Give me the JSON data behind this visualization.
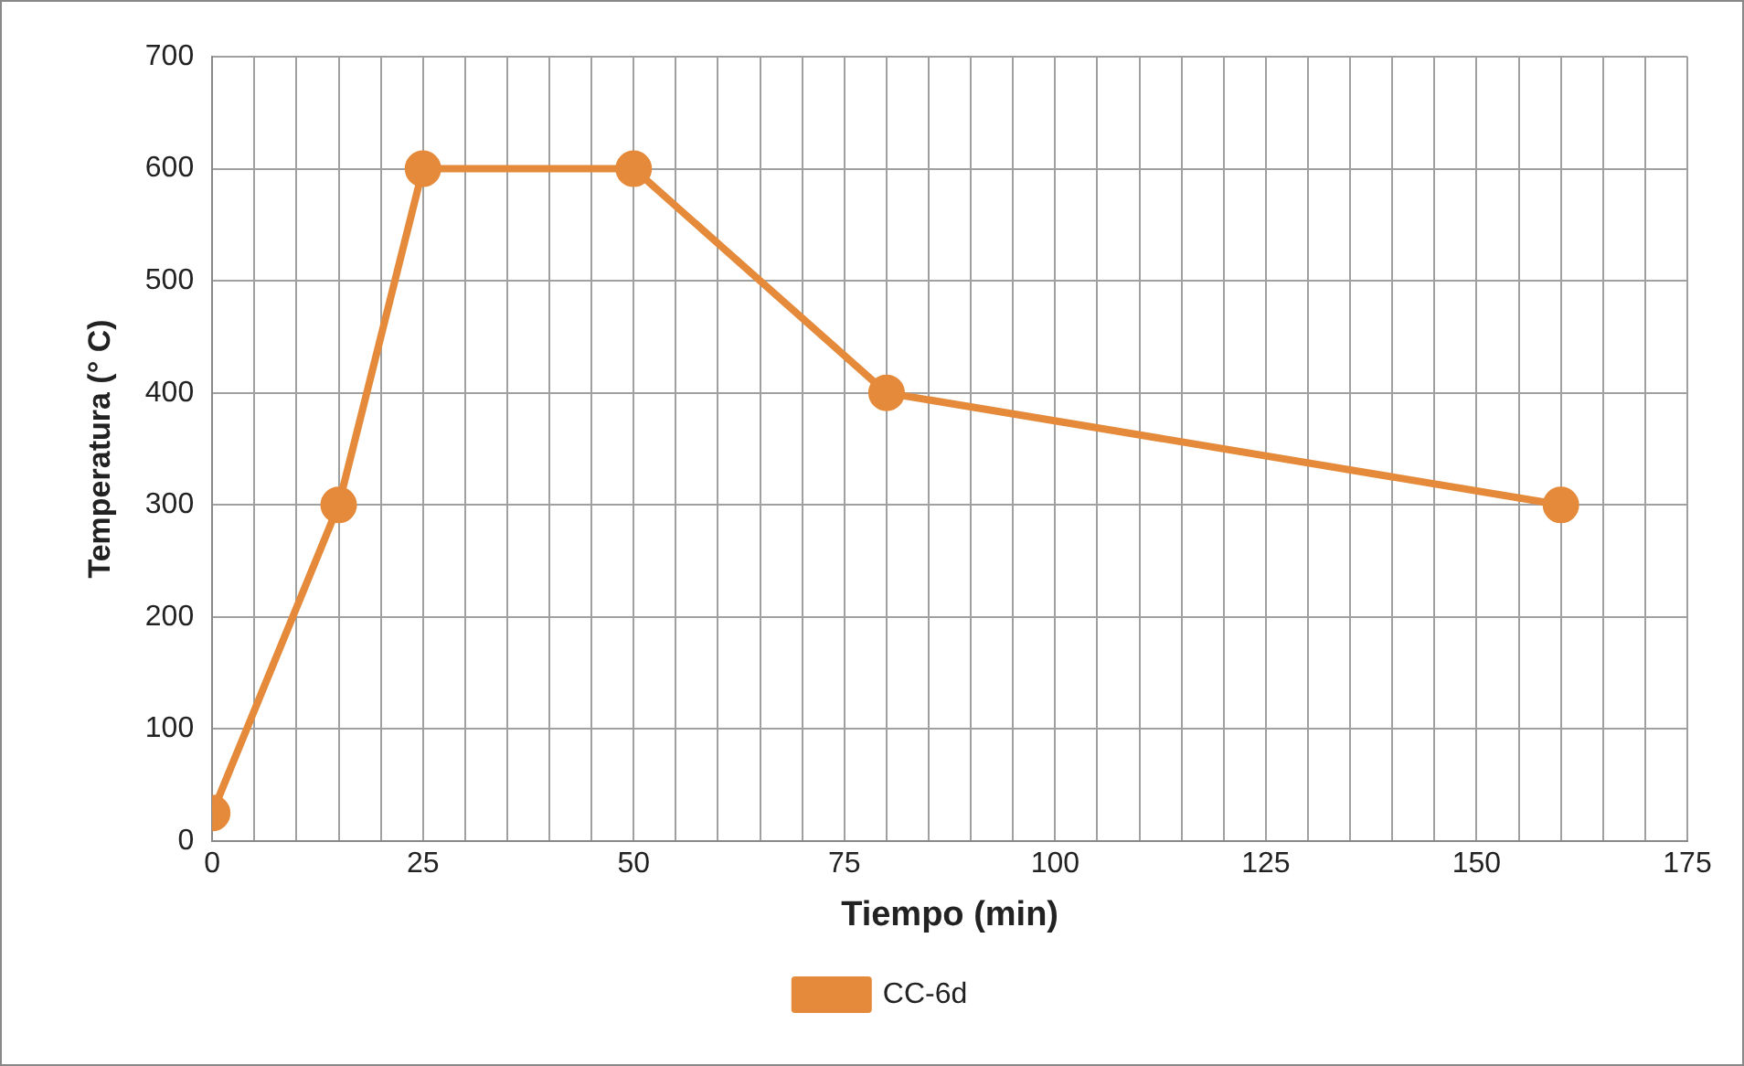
{
  "chart_data": {
    "type": "line",
    "xlabel": "Tiempo (min)",
    "ylabel": "Temperatura (° C)",
    "x": [
      0,
      15,
      25,
      50,
      80,
      160
    ],
    "series": [
      {
        "name": "CC-6d",
        "color": "#e48a3a",
        "values": [
          25,
          300,
          600,
          600,
          400,
          300
        ]
      }
    ],
    "xlim": [
      0,
      175
    ],
    "xticks": [
      0,
      {
        "value": 5,
        "label": null
      },
      {
        "value": 10,
        "label": null
      },
      {
        "value": 15,
        "label": null
      },
      {
        "value": 20,
        "label": null
      },
      25,
      {
        "value": 30,
        "label": null
      },
      {
        "value": 35,
        "label": null
      },
      {
        "value": 40,
        "label": null
      },
      {
        "value": 45,
        "label": null
      },
      50,
      {
        "value": 55,
        "label": null
      },
      {
        "value": 60,
        "label": null
      },
      {
        "value": 65,
        "label": null
      },
      {
        "value": 70,
        "label": null
      },
      75,
      {
        "value": 80,
        "label": null
      },
      {
        "value": 85,
        "label": null
      },
      {
        "value": 90,
        "label": null
      },
      {
        "value": 95,
        "label": null
      },
      100,
      {
        "value": 105,
        "label": null
      },
      {
        "value": 110,
        "label": null
      },
      {
        "value": 115,
        "label": null
      },
      {
        "value": 120,
        "label": null
      },
      125,
      {
        "value": 130,
        "label": null
      },
      {
        "value": 135,
        "label": null
      },
      {
        "value": 140,
        "label": null
      },
      {
        "value": 145,
        "label": null
      },
      150,
      {
        "value": 155,
        "label": null
      },
      {
        "value": 160,
        "label": null
      },
      {
        "value": 165,
        "label": null
      },
      {
        "value": 170,
        "label": null
      },
      175
    ],
    "ylim": [
      0,
      700
    ],
    "yticks": [
      0,
      100,
      200,
      300,
      400,
      500,
      600,
      700
    ],
    "grid": true,
    "legend": "bottom",
    "marker": "circle",
    "line_style": "solid"
  }
}
